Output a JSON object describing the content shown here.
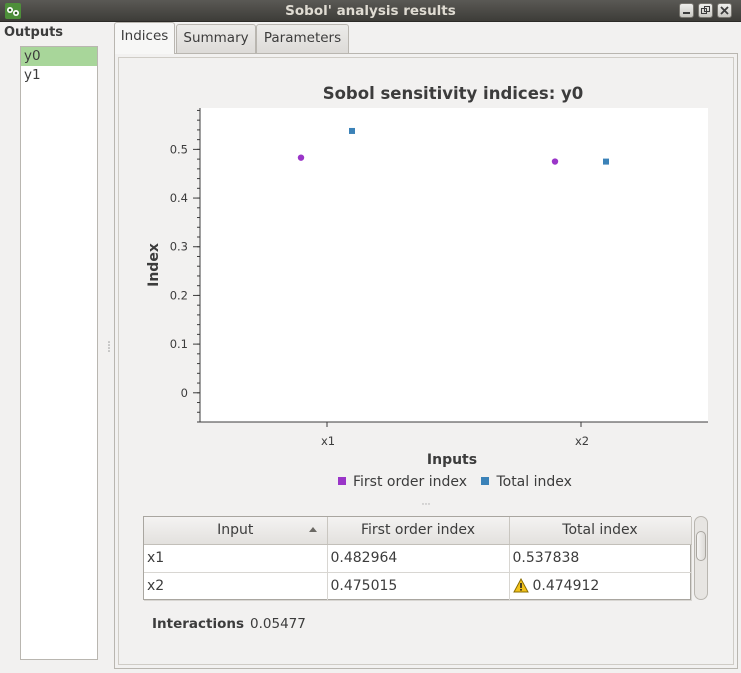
{
  "window": {
    "title": "Sobol' analysis results"
  },
  "outputs": {
    "label": "Outputs",
    "items": [
      {
        "label": "y0",
        "selected": true
      },
      {
        "label": "y1",
        "selected": false
      }
    ]
  },
  "tabs": [
    {
      "label": "Indices",
      "active": true
    },
    {
      "label": "Summary",
      "active": false
    },
    {
      "label": "Parameters",
      "active": false
    }
  ],
  "chart_data": {
    "type": "scatter",
    "title": "Sobol sensitivity indices: y0",
    "xlabel": "Inputs",
    "ylabel": "Index",
    "categories": [
      "x1",
      "x2"
    ],
    "yticks": [
      "0",
      "0.1",
      "0.2",
      "0.3",
      "0.4",
      "0.5"
    ],
    "ylim": [
      -0.06,
      0.585
    ],
    "series": [
      {
        "name": "First order index",
        "color": "#9a35c8",
        "marker": "circle",
        "values": [
          0.482964,
          0.475015
        ]
      },
      {
        "name": "Total index",
        "color": "#3b82b8",
        "marker": "square",
        "values": [
          0.537838,
          0.474912
        ]
      }
    ],
    "legend": "bottom"
  },
  "table": {
    "headers": [
      "Input",
      "First order index",
      "Total index"
    ],
    "rows": [
      [
        "x1",
        "0.482964",
        "0.537838"
      ],
      [
        "x2",
        "0.475015",
        "0.474912"
      ]
    ],
    "warning_icon": "warning-icon"
  },
  "interactions": {
    "label": "Interactions",
    "value": "0.05477"
  }
}
